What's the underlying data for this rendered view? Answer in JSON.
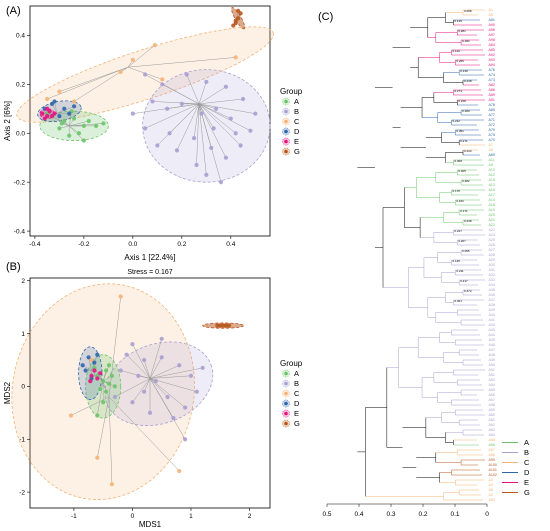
{
  "panels": {
    "a_label": "(A)",
    "b_label": "(B)",
    "c_label": "(C)"
  },
  "chart_data": [
    {
      "type": "scatter",
      "name": "PCoA",
      "xlabel": "Axis 1 [22.4%]",
      "ylabel": "Axis 2 [6%]",
      "xlim": [
        -0.42,
        0.56
      ],
      "ylim": [
        -0.42,
        0.52
      ],
      "xticks": [
        -0.4,
        -0.2,
        0.0,
        0.2,
        0.4
      ],
      "yticks": [
        -0.4,
        -0.2,
        0.0,
        0.2,
        0.4
      ],
      "xticklabels": [
        "-0.4",
        "-0.2",
        "0.0",
        "0.2",
        "0.4"
      ],
      "yticklabels": [
        "-0.4",
        "-0.2",
        "0.0",
        "0.2",
        "0.4"
      ],
      "legend_title": "Group",
      "legend_placement": "right",
      "groups": [
        {
          "name": "A",
          "color": "#6cc46a",
          "centroid": [
            -0.26,
            0.03
          ],
          "points": [
            [
              -0.33,
              0.07
            ],
            [
              -0.28,
              0.05
            ],
            [
              -0.24,
              0.06
            ],
            [
              -0.2,
              0.03
            ],
            [
              -0.3,
              0.02
            ],
            [
              -0.22,
              0.0
            ],
            [
              -0.18,
              0.05
            ],
            [
              -0.26,
              -0.01
            ],
            [
              -0.15,
              0.03
            ],
            [
              -0.12,
              0.04
            ],
            [
              -0.35,
              0.08
            ],
            [
              -0.25,
              0.09
            ],
            [
              -0.2,
              -0.03
            ],
            [
              -0.29,
              0.04
            ]
          ]
        },
        {
          "name": "B",
          "color": "#a99fd2",
          "centroid": [
            0.27,
            0.12
          ],
          "points": [
            [
              0.05,
              0.24
            ],
            [
              0.12,
              0.2
            ],
            [
              0.22,
              0.24
            ],
            [
              0.3,
              0.21
            ],
            [
              0.38,
              0.19
            ],
            [
              0.45,
              0.14
            ],
            [
              0.5,
              0.08
            ],
            [
              0.4,
              0.06
            ],
            [
              0.34,
              0.1
            ],
            [
              0.28,
              0.08
            ],
            [
              0.2,
              0.12
            ],
            [
              0.14,
              0.1
            ],
            [
              0.08,
              0.13
            ],
            [
              0.0,
              0.08
            ],
            [
              0.05,
              0.02
            ],
            [
              0.15,
              0.0
            ],
            [
              0.25,
              -0.02
            ],
            [
              0.32,
              -0.06
            ],
            [
              0.38,
              -0.1
            ],
            [
              0.44,
              -0.05
            ],
            [
              0.48,
              0.01
            ],
            [
              0.3,
              -0.17
            ],
            [
              0.36,
              -0.2
            ],
            [
              0.26,
              -0.13
            ],
            [
              0.18,
              -0.07
            ],
            [
              0.1,
              -0.05
            ],
            [
              0.33,
              0.02
            ],
            [
              0.42,
              0.0
            ]
          ]
        },
        {
          "name": "C",
          "color": "#f5b274",
          "centroid": [
            -0.02,
            0.27
          ],
          "points": [
            [
              0.09,
              0.36
            ],
            [
              0.0,
              0.3
            ],
            [
              -0.05,
              0.25
            ],
            [
              0.12,
              0.22
            ],
            [
              -0.3,
              0.17
            ],
            [
              -0.35,
              0.14
            ],
            [
              -0.24,
              0.13
            ],
            [
              0.42,
              0.31
            ]
          ]
        },
        {
          "name": "D",
          "color": "#2f66a9",
          "centroid": [
            -0.31,
            0.08
          ],
          "points": [
            [
              -0.36,
              0.1
            ],
            [
              -0.33,
              0.12
            ],
            [
              -0.28,
              0.1
            ],
            [
              -0.3,
              0.07
            ],
            [
              -0.26,
              0.08
            ],
            [
              -0.32,
              0.13
            ],
            [
              -0.24,
              0.11
            ]
          ]
        },
        {
          "name": "E",
          "color": "#e6137f",
          "centroid": [
            -0.34,
            0.08
          ],
          "points": [
            [
              -0.37,
              0.08
            ],
            [
              -0.35,
              0.07
            ],
            [
              -0.34,
              0.09
            ],
            [
              -0.36,
              0.06
            ],
            [
              -0.33,
              0.07
            ],
            [
              -0.35,
              0.1
            ],
            [
              -0.32,
              0.08
            ]
          ]
        },
        {
          "name": "G",
          "color": "#b8561c",
          "centroid": [
            0.42,
            0.46
          ],
          "points": [
            [
              0.41,
              0.44
            ],
            [
              0.42,
              0.46
            ],
            [
              0.43,
              0.47
            ],
            [
              0.44,
              0.49
            ],
            [
              0.43,
              0.5
            ],
            [
              0.42,
              0.45
            ]
          ]
        }
      ]
    },
    {
      "type": "scatter",
      "name": "NMDS",
      "stress_label": "Stress = 0.167",
      "xlabel": "MDS1",
      "ylabel": "MDS2",
      "xlim": [
        -1.75,
        2.35
      ],
      "ylim": [
        -2.3,
        2.05
      ],
      "xticks": [
        -1,
        0,
        1,
        2
      ],
      "yticks": [
        -2,
        -1,
        0,
        1,
        2
      ],
      "xticklabels": [
        "-1",
        "0",
        "1",
        "2"
      ],
      "yticklabels": [
        "-2",
        "-1",
        "0",
        "1",
        "2"
      ],
      "legend_title": "Group",
      "legend_placement": "right",
      "groups": [
        {
          "name": "A",
          "color": "#6cc46a",
          "centroid": [
            -0.5,
            0.1
          ],
          "points": [
            [
              -0.6,
              0.2
            ],
            [
              -0.5,
              0.1
            ],
            [
              -0.45,
              0.3
            ],
            [
              -0.4,
              0.05
            ],
            [
              -0.55,
              -0.05
            ],
            [
              -0.35,
              0.2
            ],
            [
              -0.3,
              0.0
            ],
            [
              -0.65,
              0.35
            ],
            [
              -0.5,
              -0.3
            ],
            [
              -0.6,
              -0.55
            ],
            [
              -0.4,
              0.4
            ],
            [
              -0.45,
              -0.1
            ]
          ]
        },
        {
          "name": "B",
          "color": "#a99fd2",
          "centroid": [
            0.3,
            0.15
          ],
          "points": [
            [
              -0.1,
              0.6
            ],
            [
              0.2,
              0.5
            ],
            [
              0.5,
              0.55
            ],
            [
              0.8,
              0.4
            ],
            [
              1.0,
              0.2
            ],
            [
              1.1,
              -0.1
            ],
            [
              0.9,
              -0.4
            ],
            [
              0.6,
              -0.2
            ],
            [
              0.4,
              0.1
            ],
            [
              0.1,
              0.2
            ],
            [
              -0.2,
              0.3
            ],
            [
              -0.3,
              -0.2
            ],
            [
              0.0,
              -0.3
            ],
            [
              0.3,
              -0.5
            ],
            [
              0.7,
              -0.6
            ],
            [
              0.9,
              -1.0
            ],
            [
              0.5,
              0.9
            ],
            [
              0.2,
              -0.1
            ],
            [
              1.2,
              0.35
            ],
            [
              0.0,
              0.8
            ]
          ]
        },
        {
          "name": "C",
          "color": "#f5b274",
          "centroid": [
            -0.4,
            -0.2
          ],
          "points": [
            [
              -0.2,
              1.7
            ],
            [
              -0.35,
              -1.85
            ],
            [
              -0.6,
              -1.35
            ],
            [
              -1.05,
              -0.55
            ],
            [
              -0.7,
              0.5
            ],
            [
              0.8,
              -1.6
            ]
          ]
        },
        {
          "name": "D",
          "color": "#2f66a9",
          "centroid": [
            -0.7,
            0.3
          ],
          "points": [
            [
              -0.75,
              0.55
            ],
            [
              -0.8,
              0.3
            ],
            [
              -0.65,
              0.45
            ],
            [
              -0.7,
              0.15
            ],
            [
              -0.6,
              0.6
            ],
            [
              -0.85,
              0.4
            ]
          ]
        },
        {
          "name": "E",
          "color": "#e6137f",
          "centroid": [
            -0.65,
            0.2
          ],
          "points": [
            [
              -0.7,
              0.2
            ],
            [
              -0.6,
              0.15
            ],
            [
              -0.65,
              0.3
            ],
            [
              -0.55,
              0.25
            ],
            [
              -0.72,
              0.1
            ]
          ]
        },
        {
          "name": "G",
          "color": "#b8561c",
          "centroid": [
            1.55,
            1.15
          ],
          "points": [
            [
              1.45,
              1.15
            ],
            [
              1.5,
              1.15
            ],
            [
              1.55,
              1.15
            ],
            [
              1.6,
              1.15
            ],
            [
              1.65,
              1.15
            ]
          ]
        }
      ]
    },
    {
      "type": "dendrogram",
      "name": "Tree",
      "xticks": [
        0.5,
        0.4,
        0.3,
        0.2,
        0.1,
        0.0
      ],
      "xticklabels": [
        "0.5",
        "0.4",
        "0.3",
        "0.2",
        "0.1",
        "0"
      ],
      "legend": [
        {
          "name": "A",
          "color": "#6cc46a"
        },
        {
          "name": "B",
          "color": "#a99fd2"
        },
        {
          "name": "C",
          "color": "#f5b274"
        },
        {
          "name": "D",
          "color": "#2f66a9"
        },
        {
          "name": "E",
          "color": "#e6137f"
        },
        {
          "name": "G",
          "color": "#b8561c"
        }
      ],
      "leaf_groups": [
        "C",
        "C",
        "D",
        "E",
        "E",
        "E",
        "E",
        "E",
        "E",
        "E",
        "E",
        "E",
        "D",
        "D",
        "D",
        "E",
        "E",
        "E",
        "E",
        "D",
        "D",
        "D",
        "D",
        "D",
        "D",
        "D",
        "D",
        "C",
        "C",
        "D",
        "A",
        "A",
        "A",
        "A",
        "A",
        "A",
        "A",
        "A",
        "A",
        "A",
        "A",
        "A",
        "A",
        "A",
        "B",
        "B",
        "B",
        "B",
        "B",
        "B",
        "B",
        "B",
        "B",
        "B",
        "B",
        "B",
        "B",
        "B",
        "B",
        "B",
        "B",
        "B",
        "B",
        "B",
        "B",
        "B",
        "B",
        "B",
        "B",
        "B",
        "B",
        "B",
        "B",
        "B",
        "B",
        "B",
        "B",
        "B",
        "B",
        "B",
        "B",
        "B",
        "B",
        "B",
        "B",
        "B",
        "C",
        "A",
        "C",
        "C",
        "G",
        "G",
        "G",
        "G",
        "C",
        "C",
        "C",
        "C",
        "C"
      ],
      "leaf_labels": [
        "A1",
        "A5",
        "A81",
        "A90",
        "A96",
        "A97",
        "A98",
        "A84",
        "A85",
        "A92",
        "A93",
        "A94",
        "A76",
        "A74",
        "A73",
        "A82",
        "A86",
        "A89",
        "A91",
        "A78",
        "A80",
        "A77",
        "A71",
        "A72",
        "A79",
        "A75",
        "A70",
        "A7",
        "A8",
        "A69",
        "A11",
        "A9",
        "A10",
        "A12",
        "A15",
        "A13",
        "A16",
        "A17",
        "A14",
        "A18",
        "A19",
        "A20",
        "A21",
        "A22",
        "A23",
        "A24",
        "A25",
        "A26",
        "A27",
        "A28",
        "A29",
        "A30",
        "A31",
        "A32",
        "A33",
        "A34",
        "A35",
        "A36",
        "A37",
        "A38",
        "A39",
        "A40",
        "A41",
        "A42",
        "A43",
        "A44",
        "A45",
        "A46",
        "A47",
        "A48",
        "A49",
        "A50",
        "A51",
        "A52",
        "A53",
        "A54",
        "A55",
        "A56",
        "A57",
        "A58",
        "A59",
        "A60",
        "A61",
        "A62",
        "A63",
        "A64",
        "A65",
        "A66",
        "A67",
        "A68",
        "A99",
        "A100",
        "A101",
        "A102",
        "A3",
        "A4",
        "A6",
        "A2",
        "A83"
      ],
      "node_values": [
        "0.088",
        "0.135",
        "0.281",
        "0.184",
        "0.119",
        "0.265",
        "0.139",
        "0.238",
        "0.273",
        "0.158",
        "0.183",
        "0.212",
        "0.351",
        "0.271",
        "0.233",
        "0.308",
        "0.305",
        "0.282",
        "0.176",
        "0.162",
        "0.171",
        "0.238",
        "0.247",
        "0.267",
        "0.055",
        "0.145",
        "0.211",
        "0.317",
        "0.473",
        "0.461"
      ]
    }
  ]
}
